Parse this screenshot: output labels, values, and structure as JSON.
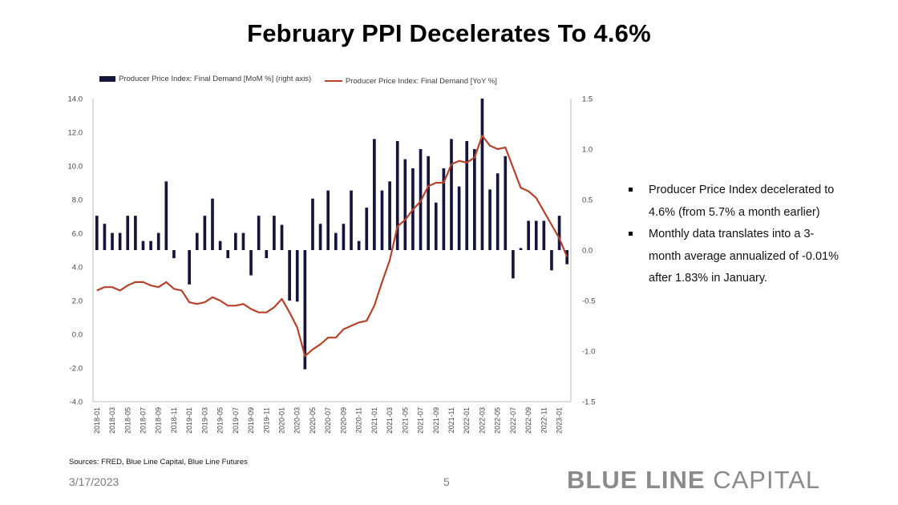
{
  "title": "February PPI Decelerates To 4.6%",
  "bullets": [
    "Producer Price Index decelerated to 4.6% (from 5.7% a month earlier)",
    "Monthly data translates into a 3-month average annualized of -0.01% after 1.83% in January."
  ],
  "sources": "Sources: FRED, Blue Line Capital, Blue Line Futures",
  "footer": {
    "date": "3/17/2023",
    "page": "5"
  },
  "logo": {
    "bold": "BLUE LINE",
    "light": " CAPITAL"
  },
  "colors": {
    "bar": "#14143c",
    "line": "#b5432c",
    "axis": "#bbbbbb",
    "tick": "#444444"
  },
  "chart_data": {
    "type": "bar+line",
    "x": [
      "2018-01",
      "2018-02",
      "2018-03",
      "2018-04",
      "2018-05",
      "2018-06",
      "2018-07",
      "2018-08",
      "2018-09",
      "2018-10",
      "2018-11",
      "2018-12",
      "2019-01",
      "2019-02",
      "2019-03",
      "2019-04",
      "2019-05",
      "2019-06",
      "2019-07",
      "2019-08",
      "2019-09",
      "2019-10",
      "2019-11",
      "2019-12",
      "2020-01",
      "2020-02",
      "2020-03",
      "2020-04",
      "2020-05",
      "2020-06",
      "2020-07",
      "2020-08",
      "2020-09",
      "2020-10",
      "2020-11",
      "2020-12",
      "2021-01",
      "2021-02",
      "2021-03",
      "2021-04",
      "2021-05",
      "2021-06",
      "2021-07",
      "2021-08",
      "2021-09",
      "2021-10",
      "2021-11",
      "2021-12",
      "2022-01",
      "2022-02",
      "2022-03",
      "2022-04",
      "2022-05",
      "2022-06",
      "2022-07",
      "2022-08",
      "2022-09",
      "2022-10",
      "2022-11",
      "2022-12",
      "2023-01",
      "2023-02"
    ],
    "xtick_labels": [
      "2018-01",
      "2018-03",
      "2018-05",
      "2018-07",
      "2018-09",
      "2018-11",
      "2019-01",
      "2019-03",
      "2019-05",
      "2019-07",
      "2019-09",
      "2019-11",
      "2020-01",
      "2020-03",
      "2020-05",
      "2020-07",
      "2020-09",
      "2020-11",
      "2021-01",
      "2021-03",
      "2021-05",
      "2021-07",
      "2021-09",
      "2021-11",
      "2022-01",
      "2022-03",
      "2022-05",
      "2022-07",
      "2022-09",
      "2022-11",
      "2023-01"
    ],
    "series": [
      {
        "name": "Producer Price Index: Final Demand [MoM %] (right axis)",
        "kind": "bar",
        "axis": "right",
        "values": [
          0.34,
          0.26,
          0.17,
          0.17,
          0.34,
          0.34,
          0.09,
          0.09,
          0.17,
          0.68,
          -0.08,
          0.0,
          -0.34,
          0.17,
          0.34,
          0.51,
          0.09,
          -0.08,
          0.17,
          0.17,
          -0.25,
          0.34,
          -0.08,
          0.34,
          0.25,
          -0.5,
          -0.51,
          -1.18,
          0.51,
          0.26,
          0.59,
          0.17,
          0.26,
          0.59,
          0.09,
          0.42,
          1.1,
          0.59,
          0.68,
          1.08,
          0.9,
          0.81,
          1.0,
          0.93,
          0.47,
          0.81,
          1.1,
          0.63,
          1.08,
          1.0,
          1.5,
          0.6,
          0.76,
          0.93,
          -0.28,
          0.02,
          0.29,
          0.29,
          0.29,
          -0.2,
          0.34,
          -0.14
        ]
      },
      {
        "name": "Producer Price Index: Final Demand [YoY %]",
        "kind": "line",
        "axis": "left",
        "values": [
          2.6,
          2.8,
          2.8,
          2.6,
          2.9,
          3.1,
          3.1,
          2.9,
          2.8,
          3.1,
          2.7,
          2.6,
          1.9,
          1.8,
          1.9,
          2.2,
          2.0,
          1.7,
          1.7,
          1.8,
          1.5,
          1.3,
          1.3,
          1.6,
          2.1,
          1.3,
          0.4,
          -1.3,
          -0.9,
          -0.6,
          -0.2,
          -0.2,
          0.3,
          0.5,
          0.7,
          0.8,
          1.7,
          3.1,
          4.4,
          6.4,
          6.8,
          7.4,
          7.9,
          8.8,
          9.0,
          9.0,
          10.1,
          10.3,
          10.2,
          10.5,
          11.8,
          11.2,
          11.0,
          11.1,
          9.9,
          8.7,
          8.5,
          8.1,
          7.3,
          6.5,
          5.7,
          4.6
        ]
      }
    ],
    "y_left": {
      "ylim": [
        -4.0,
        14.0
      ],
      "ticks": [
        "14.0",
        "12.0",
        "10.0",
        "8.0",
        "6.0",
        "4.0",
        "2.0",
        "0.0",
        "-2.0",
        "-4.0"
      ]
    },
    "y_right": {
      "ylim": [
        -1.5,
        1.5
      ],
      "ticks": [
        "1.5",
        "1.0",
        "0.5",
        "0.0",
        "-0.5",
        "-1.0",
        "-1.5"
      ]
    },
    "legend": "top-center",
    "grid": false
  }
}
